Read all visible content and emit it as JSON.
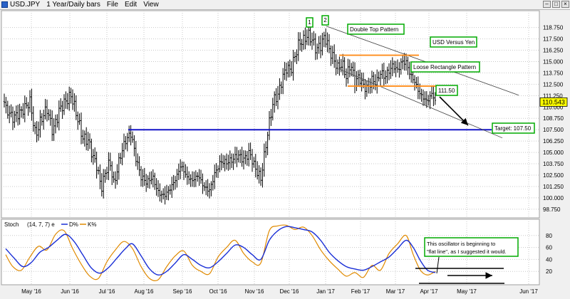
{
  "window": {
    "title": "USD.JPY",
    "timeframe": "1 Year/Daily bars",
    "menu": [
      "File",
      "Edit",
      "View"
    ]
  },
  "chart_data": [
    {
      "type": "candlestick",
      "symbol": "USD.JPY",
      "title": "USD Versus Yen",
      "y_ticks": [
        98.75,
        100.0,
        101.25,
        102.5,
        103.75,
        105.0,
        106.25,
        107.5,
        108.75,
        110.0,
        111.25,
        112.5,
        113.75,
        115.0,
        116.25,
        117.5,
        118.75
      ],
      "y_tick_labels": [
        "98.750",
        "100.000",
        "101.250",
        "102.500",
        "103.750",
        "105.000",
        "106.250",
        "107.500",
        "108.750",
        "110.000",
        "111.250",
        "112.500",
        "113.750",
        "115.000",
        "116.250",
        "117.500",
        "118.750"
      ],
      "ylim": [
        97.8,
        120.6
      ],
      "x_labels": [
        "May '16",
        "Jun '16",
        "Jul '16",
        "Aug '16",
        "Sep '16",
        "Oct '16",
        "Nov '16",
        "Dec '16",
        "Jan '17",
        "Feb '17",
        "Mar '17",
        "Apr '17",
        "May '17",
        "Jun '17"
      ],
      "last_price": "110.543",
      "approx_closes": [
        {
          "x": 8,
          "y": 109.8
        },
        {
          "x": 18,
          "y": 108.8
        },
        {
          "x": 30,
          "y": 109.5
        },
        {
          "x": 42,
          "y": 110.6
        },
        {
          "x": 50,
          "y": 106.8
        },
        {
          "x": 58,
          "y": 108.7
        },
        {
          "x": 66,
          "y": 109.8
        },
        {
          "x": 74,
          "y": 107.3
        },
        {
          "x": 84,
          "y": 109.8
        },
        {
          "x": 94,
          "y": 110.8
        },
        {
          "x": 100,
          "y": 111.3
        },
        {
          "x": 108,
          "y": 109.0
        },
        {
          "x": 116,
          "y": 106.6
        },
        {
          "x": 124,
          "y": 106.3
        },
        {
          "x": 130,
          "y": 104.6
        },
        {
          "x": 136,
          "y": 103.5
        },
        {
          "x": 142,
          "y": 101.0
        },
        {
          "x": 148,
          "y": 102.8
        },
        {
          "x": 154,
          "y": 104.0
        },
        {
          "x": 160,
          "y": 101.4
        },
        {
          "x": 168,
          "y": 104.4
        },
        {
          "x": 176,
          "y": 106.3
        },
        {
          "x": 184,
          "y": 107.1
        },
        {
          "x": 190,
          "y": 104.6
        },
        {
          "x": 198,
          "y": 102.3
        },
        {
          "x": 206,
          "y": 101.7
        },
        {
          "x": 214,
          "y": 102.3
        },
        {
          "x": 222,
          "y": 100.6
        },
        {
          "x": 230,
          "y": 100.2
        },
        {
          "x": 238,
          "y": 100.9
        },
        {
          "x": 246,
          "y": 102.0
        },
        {
          "x": 254,
          "y": 103.6
        },
        {
          "x": 262,
          "y": 102.3
        },
        {
          "x": 270,
          "y": 101.9
        },
        {
          "x": 278,
          "y": 102.5
        },
        {
          "x": 286,
          "y": 101.2
        },
        {
          "x": 294,
          "y": 100.8
        },
        {
          "x": 302,
          "y": 102.8
        },
        {
          "x": 310,
          "y": 104.0
        },
        {
          "x": 318,
          "y": 103.9
        },
        {
          "x": 326,
          "y": 104.2
        },
        {
          "x": 334,
          "y": 104.7
        },
        {
          "x": 342,
          "y": 104.2
        },
        {
          "x": 350,
          "y": 105.0
        },
        {
          "x": 358,
          "y": 103.3
        },
        {
          "x": 366,
          "y": 102.1
        },
        {
          "x": 372,
          "y": 105.2
        },
        {
          "x": 378,
          "y": 108.3
        },
        {
          "x": 384,
          "y": 110.8
        },
        {
          "x": 390,
          "y": 111.3
        },
        {
          "x": 396,
          "y": 113.1
        },
        {
          "x": 402,
          "y": 114.3
        },
        {
          "x": 408,
          "y": 114.0
        },
        {
          "x": 414,
          "y": 115.6
        },
        {
          "x": 420,
          "y": 117.1
        },
        {
          "x": 426,
          "y": 117.3
        },
        {
          "x": 432,
          "y": 118.0
        },
        {
          "x": 438,
          "y": 117.4
        },
        {
          "x": 444,
          "y": 116.3
        },
        {
          "x": 450,
          "y": 116.8
        },
        {
          "x": 456,
          "y": 117.8
        },
        {
          "x": 462,
          "y": 116.3
        },
        {
          "x": 468,
          "y": 115.3
        },
        {
          "x": 474,
          "y": 114.3
        },
        {
          "x": 480,
          "y": 114.8
        },
        {
          "x": 486,
          "y": 113.3
        },
        {
          "x": 492,
          "y": 114.8
        },
        {
          "x": 498,
          "y": 112.8
        },
        {
          "x": 504,
          "y": 113.3
        },
        {
          "x": 510,
          "y": 112.3
        },
        {
          "x": 516,
          "y": 112.0
        },
        {
          "x": 522,
          "y": 113.0
        },
        {
          "x": 528,
          "y": 112.6
        },
        {
          "x": 534,
          "y": 113.8
        },
        {
          "x": 540,
          "y": 113.3
        },
        {
          "x": 546,
          "y": 114.0
        },
        {
          "x": 552,
          "y": 114.6
        },
        {
          "x": 558,
          "y": 114.0
        },
        {
          "x": 564,
          "y": 115.0
        },
        {
          "x": 570,
          "y": 114.9
        },
        {
          "x": 576,
          "y": 113.5
        },
        {
          "x": 582,
          "y": 112.8
        },
        {
          "x": 588,
          "y": 111.6
        },
        {
          "x": 594,
          "y": 111.0
        },
        {
          "x": 600,
          "y": 110.6
        },
        {
          "x": 606,
          "y": 111.5
        },
        {
          "x": 611,
          "y": 110.6
        }
      ],
      "annotations": {
        "peak1": "1",
        "peak2": "2",
        "double_top": "Double Top Pattern",
        "title_box": "USD Versus Yen",
        "rectangle": "Loose Rectangle Pattern",
        "level": "111.50",
        "target": "Target: 107.50"
      },
      "support_line_value": 107.5,
      "rectangle_top": 115.7,
      "rectangle_bottom": 112.3,
      "colors": {
        "price": "#000000",
        "horizontal_line": "#1515c8",
        "rectangle": "#ff8c1a",
        "channel": "#404040",
        "annotation_border": "#00aa00"
      }
    },
    {
      "type": "line",
      "indicator": "Stoch",
      "params": "(14, 7, 7) e",
      "series": [
        {
          "name": "D%",
          "color": "#1a2fd6"
        },
        {
          "name": "K%",
          "color": "#e08a00"
        }
      ],
      "y_ticks": [
        20,
        40,
        60,
        80
      ],
      "ylim": [
        0,
        100
      ],
      "d_values": [
        {
          "x": 8,
          "y": 58
        },
        {
          "x": 20,
          "y": 42
        },
        {
          "x": 32,
          "y": 28
        },
        {
          "x": 44,
          "y": 35
        },
        {
          "x": 56,
          "y": 52
        },
        {
          "x": 68,
          "y": 60
        },
        {
          "x": 80,
          "y": 72
        },
        {
          "x": 92,
          "y": 82
        },
        {
          "x": 104,
          "y": 70
        },
        {
          "x": 116,
          "y": 48
        },
        {
          "x": 128,
          "y": 26
        },
        {
          "x": 140,
          "y": 17
        },
        {
          "x": 152,
          "y": 26
        },
        {
          "x": 164,
          "y": 42
        },
        {
          "x": 176,
          "y": 58
        },
        {
          "x": 186,
          "y": 66
        },
        {
          "x": 198,
          "y": 46
        },
        {
          "x": 210,
          "y": 24
        },
        {
          "x": 222,
          "y": 14
        },
        {
          "x": 234,
          "y": 20
        },
        {
          "x": 246,
          "y": 34
        },
        {
          "x": 258,
          "y": 48
        },
        {
          "x": 270,
          "y": 40
        },
        {
          "x": 282,
          "y": 30
        },
        {
          "x": 294,
          "y": 26
        },
        {
          "x": 306,
          "y": 36
        },
        {
          "x": 318,
          "y": 50
        },
        {
          "x": 330,
          "y": 64
        },
        {
          "x": 342,
          "y": 60
        },
        {
          "x": 354,
          "y": 48
        },
        {
          "x": 366,
          "y": 40
        },
        {
          "x": 378,
          "y": 72
        },
        {
          "x": 390,
          "y": 88
        },
        {
          "x": 402,
          "y": 95
        },
        {
          "x": 414,
          "y": 93
        },
        {
          "x": 426,
          "y": 90
        },
        {
          "x": 438,
          "y": 86
        },
        {
          "x": 450,
          "y": 72
        },
        {
          "x": 462,
          "y": 52
        },
        {
          "x": 474,
          "y": 38
        },
        {
          "x": 486,
          "y": 28
        },
        {
          "x": 498,
          "y": 24
        },
        {
          "x": 510,
          "y": 22
        },
        {
          "x": 522,
          "y": 28
        },
        {
          "x": 534,
          "y": 36
        },
        {
          "x": 546,
          "y": 44
        },
        {
          "x": 558,
          "y": 58
        },
        {
          "x": 570,
          "y": 72
        },
        {
          "x": 580,
          "y": 60
        },
        {
          "x": 590,
          "y": 38
        },
        {
          "x": 600,
          "y": 22
        },
        {
          "x": 611,
          "y": 18
        }
      ],
      "k_values": [
        {
          "x": 8,
          "y": 48
        },
        {
          "x": 18,
          "y": 28
        },
        {
          "x": 30,
          "y": 22
        },
        {
          "x": 42,
          "y": 44
        },
        {
          "x": 54,
          "y": 62
        },
        {
          "x": 66,
          "y": 56
        },
        {
          "x": 78,
          "y": 82
        },
        {
          "x": 90,
          "y": 88
        },
        {
          "x": 102,
          "y": 58
        },
        {
          "x": 114,
          "y": 32
        },
        {
          "x": 126,
          "y": 12
        },
        {
          "x": 138,
          "y": 8
        },
        {
          "x": 150,
          "y": 36
        },
        {
          "x": 162,
          "y": 56
        },
        {
          "x": 174,
          "y": 70
        },
        {
          "x": 186,
          "y": 58
        },
        {
          "x": 198,
          "y": 28
        },
        {
          "x": 210,
          "y": 8
        },
        {
          "x": 222,
          "y": 6
        },
        {
          "x": 234,
          "y": 28
        },
        {
          "x": 246,
          "y": 46
        },
        {
          "x": 258,
          "y": 54
        },
        {
          "x": 270,
          "y": 30
        },
        {
          "x": 282,
          "y": 20
        },
        {
          "x": 294,
          "y": 16
        },
        {
          "x": 306,
          "y": 44
        },
        {
          "x": 318,
          "y": 60
        },
        {
          "x": 330,
          "y": 72
        },
        {
          "x": 342,
          "y": 50
        },
        {
          "x": 354,
          "y": 36
        },
        {
          "x": 366,
          "y": 34
        },
        {
          "x": 378,
          "y": 88
        },
        {
          "x": 390,
          "y": 96
        },
        {
          "x": 402,
          "y": 97
        },
        {
          "x": 414,
          "y": 90
        },
        {
          "x": 426,
          "y": 94
        },
        {
          "x": 438,
          "y": 80
        },
        {
          "x": 450,
          "y": 56
        },
        {
          "x": 462,
          "y": 38
        },
        {
          "x": 474,
          "y": 24
        },
        {
          "x": 486,
          "y": 12
        },
        {
          "x": 498,
          "y": 18
        },
        {
          "x": 510,
          "y": 10
        },
        {
          "x": 522,
          "y": 30
        },
        {
          "x": 534,
          "y": 22
        },
        {
          "x": 546,
          "y": 50
        },
        {
          "x": 558,
          "y": 66
        },
        {
          "x": 570,
          "y": 80
        },
        {
          "x": 580,
          "y": 48
        },
        {
          "x": 590,
          "y": 22
        },
        {
          "x": 600,
          "y": 14
        },
        {
          "x": 611,
          "y": 20
        }
      ],
      "note": "This oscillator is beginning to \"flat line\", as I suggested it would."
    }
  ]
}
